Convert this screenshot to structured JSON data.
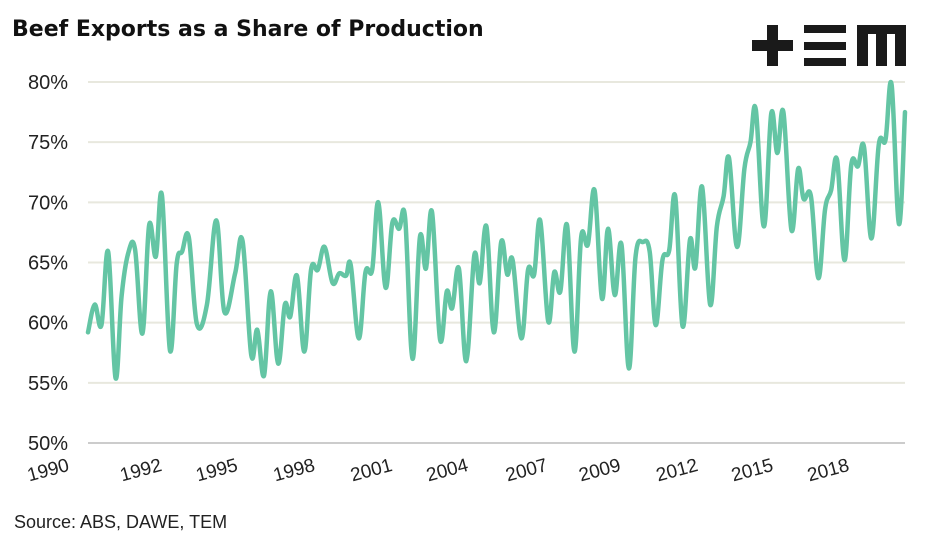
{
  "chart_data": {
    "type": "line",
    "title": "Beef Exports as a Share of Production",
    "source": "Source: ABS, DAWE, TEM",
    "logo_text": "TEM",
    "xlabel": "",
    "ylabel": "",
    "x_units": "quarter index from 1990",
    "xlim": [
      0,
      121.6
    ],
    "ylim": [
      50,
      80
    ],
    "yticks": [
      {
        "value": 50,
        "label": "50%"
      },
      {
        "value": 55,
        "label": "55%"
      },
      {
        "value": 60,
        "label": "60%"
      },
      {
        "value": 65,
        "label": "65%"
      },
      {
        "value": 70,
        "label": "70%"
      },
      {
        "value": 75,
        "label": "75%"
      },
      {
        "value": 80,
        "label": "80%"
      }
    ],
    "xticks": [
      {
        "value": -5.7,
        "label": "1990"
      },
      {
        "value": 8.1,
        "label": "1992"
      },
      {
        "value": 19.4,
        "label": "1995"
      },
      {
        "value": 30.9,
        "label": "1998"
      },
      {
        "value": 42.4,
        "label": "2001"
      },
      {
        "value": 53.7,
        "label": "2004"
      },
      {
        "value": 65.5,
        "label": "2007"
      },
      {
        "value": 76.4,
        "label": "2009"
      },
      {
        "value": 87.9,
        "label": "2012"
      },
      {
        "value": 99.1,
        "label": "2015"
      },
      {
        "value": 110.4,
        "label": "2018"
      }
    ],
    "grid": true,
    "colors": {
      "line": "#64c5a4",
      "grid": "#e8e8de",
      "axis": "#cccccc"
    },
    "series": [
      {
        "name": "Beef exports share of production",
        "points": [
          [
            0,
            59.2
          ],
          [
            1.0,
            61.5
          ],
          [
            2.0,
            59.8
          ],
          [
            3.0,
            65.9
          ],
          [
            4.1,
            55.4
          ],
          [
            5.0,
            62.2
          ],
          [
            6.0,
            65.8
          ],
          [
            7.0,
            66.1
          ],
          [
            8.1,
            59.1
          ],
          [
            9.1,
            68.1
          ],
          [
            10.1,
            65.5
          ],
          [
            11.0,
            70.6
          ],
          [
            12.2,
            57.7
          ],
          [
            13.2,
            64.9
          ],
          [
            14.0,
            65.9
          ],
          [
            15.0,
            67.1
          ],
          [
            16.2,
            59.9
          ],
          [
            17.7,
            61.5
          ],
          [
            19.1,
            68.5
          ],
          [
            20.3,
            60.9
          ],
          [
            21.9,
            64.1
          ],
          [
            23.0,
            66.8
          ],
          [
            24.3,
            57.3
          ],
          [
            25.2,
            59.4
          ],
          [
            26.2,
            55.6
          ],
          [
            27.2,
            62.6
          ],
          [
            28.3,
            56.6
          ],
          [
            29.3,
            61.5
          ],
          [
            30.1,
            60.5
          ],
          [
            31.1,
            63.9
          ],
          [
            32.2,
            57.6
          ],
          [
            33.2,
            64.4
          ],
          [
            34.2,
            64.4
          ],
          [
            35.2,
            66.3
          ],
          [
            36.4,
            63.3
          ],
          [
            37.4,
            64.1
          ],
          [
            38.4,
            63.9
          ],
          [
            39.1,
            64.8
          ],
          [
            40.3,
            58.7
          ],
          [
            41.3,
            64.2
          ],
          [
            42.3,
            64.4
          ],
          [
            43.2,
            70.0
          ],
          [
            44.3,
            62.9
          ],
          [
            45.3,
            68.3
          ],
          [
            46.3,
            67.8
          ],
          [
            47.2,
            68.7
          ],
          [
            48.3,
            57.0
          ],
          [
            49.4,
            67.1
          ],
          [
            50.3,
            64.5
          ],
          [
            51.2,
            69.2
          ],
          [
            52.4,
            58.6
          ],
          [
            53.4,
            62.6
          ],
          [
            54.2,
            61.2
          ],
          [
            55.2,
            64.5
          ],
          [
            56.3,
            56.8
          ],
          [
            57.5,
            65.6
          ],
          [
            58.3,
            63.3
          ],
          [
            59.3,
            68.0
          ],
          [
            60.4,
            59.2
          ],
          [
            61.5,
            66.7
          ],
          [
            62.4,
            64.0
          ],
          [
            63.2,
            65.2
          ],
          [
            64.5,
            58.7
          ],
          [
            65.5,
            64.4
          ],
          [
            66.4,
            64.0
          ],
          [
            67.3,
            68.5
          ],
          [
            68.5,
            60.1
          ],
          [
            69.4,
            64.2
          ],
          [
            70.3,
            62.6
          ],
          [
            71.3,
            68.1
          ],
          [
            72.4,
            57.6
          ],
          [
            73.4,
            67.1
          ],
          [
            74.4,
            66.5
          ],
          [
            75.4,
            71.0
          ],
          [
            76.5,
            62.0
          ],
          [
            77.4,
            67.8
          ],
          [
            78.4,
            62.3
          ],
          [
            79.4,
            66.5
          ],
          [
            80.5,
            56.2
          ],
          [
            81.5,
            65.5
          ],
          [
            82.6,
            66.7
          ],
          [
            83.6,
            65.9
          ],
          [
            84.5,
            59.8
          ],
          [
            85.5,
            65.2
          ],
          [
            86.5,
            66.0
          ],
          [
            87.4,
            70.5
          ],
          [
            88.5,
            59.7
          ],
          [
            89.6,
            66.9
          ],
          [
            90.4,
            64.6
          ],
          [
            91.4,
            71.3
          ],
          [
            92.6,
            61.5
          ],
          [
            93.6,
            68.0
          ],
          [
            94.6,
            70.5
          ],
          [
            95.4,
            73.7
          ],
          [
            96.6,
            66.3
          ],
          [
            97.7,
            72.8
          ],
          [
            98.6,
            75.0
          ],
          [
            99.4,
            77.7
          ],
          [
            100.6,
            68.0
          ],
          [
            101.7,
            77.4
          ],
          [
            102.6,
            74.1
          ],
          [
            103.5,
            77.5
          ],
          [
            104.7,
            67.7
          ],
          [
            105.7,
            72.8
          ],
          [
            106.5,
            70.3
          ],
          [
            107.6,
            70.5
          ],
          [
            108.7,
            63.7
          ],
          [
            109.7,
            69.4
          ],
          [
            110.6,
            71.0
          ],
          [
            111.5,
            73.5
          ],
          [
            112.6,
            65.2
          ],
          [
            113.6,
            73.1
          ],
          [
            114.6,
            73.0
          ],
          [
            115.5,
            74.6
          ],
          [
            116.6,
            67.0
          ],
          [
            117.7,
            74.8
          ],
          [
            118.7,
            75.2
          ],
          [
            119.6,
            79.8
          ],
          [
            120.7,
            68.2
          ],
          [
            121.6,
            77.5
          ]
        ]
      }
    ]
  }
}
